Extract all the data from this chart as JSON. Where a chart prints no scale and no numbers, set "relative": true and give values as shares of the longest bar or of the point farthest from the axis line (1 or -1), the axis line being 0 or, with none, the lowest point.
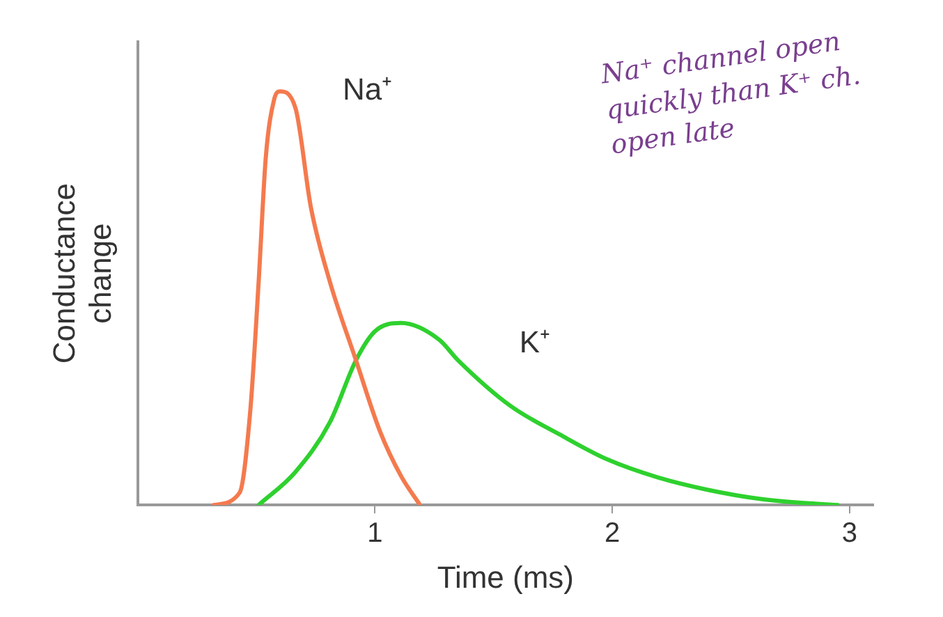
{
  "chart_data": {
    "type": "line",
    "relative": true,
    "xlabel": "Time (ms)",
    "ylabel": "Conductance change",
    "xlim": [
      0,
      3.1
    ],
    "xticks": [
      1,
      2,
      3
    ],
    "grid": false,
    "legend": false,
    "marker": "none",
    "line_style": "solid",
    "annotations": [
      "Na⁺ channel open quickly than K⁺ ch. open late"
    ],
    "series": [
      {
        "name": "Na⁺",
        "color": "#f47a4e",
        "x": [
          0.32,
          0.43,
          0.475,
          0.51,
          0.54,
          0.575,
          0.6,
          0.665,
          0.73,
          0.81,
          0.92,
          1.02,
          1.11,
          1.19
        ],
        "values": [
          0,
          0.03,
          0.23,
          0.54,
          0.84,
          0.98,
          1,
          0.96,
          0.72,
          0.54,
          0.35,
          0.18,
          0.07,
          0
        ]
      },
      {
        "name": "K⁺",
        "color": "#2ed12e",
        "x": [
          0.51,
          0.665,
          0.81,
          0.92,
          1.0,
          1.11,
          1.27,
          1.35,
          1.57,
          1.78,
          1.98,
          2.19,
          2.4,
          2.62,
          2.83,
          2.95
        ],
        "values": [
          0,
          0.08,
          0.2,
          0.35,
          0.42,
          0.44,
          0.4,
          0.35,
          0.24,
          0.17,
          0.11,
          0.067,
          0.037,
          0.015,
          0.004,
          0
        ]
      }
    ]
  }
}
